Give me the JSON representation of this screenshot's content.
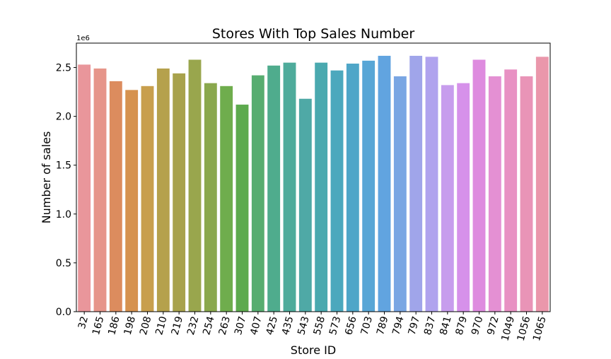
{
  "chart_data": {
    "type": "bar",
    "title": "Stores With Top Sales Number",
    "xlabel": "Store ID",
    "ylabel": "Number of sales",
    "y_scale_label": "1e6",
    "ylim": [
      0,
      2.75
    ],
    "yticks": [
      0.0,
      0.5,
      1.0,
      1.5,
      2.0,
      2.5
    ],
    "ytick_labels": [
      "0.0",
      "0.5",
      "1.0",
      "1.5",
      "2.0",
      "2.5"
    ],
    "grid": false,
    "legend": "none",
    "categories": [
      "32",
      "165",
      "186",
      "198",
      "208",
      "210",
      "219",
      "232",
      "254",
      "263",
      "307",
      "407",
      "425",
      "435",
      "543",
      "558",
      "573",
      "656",
      "703",
      "789",
      "794",
      "797",
      "837",
      "841",
      "879",
      "970",
      "972",
      "1049",
      "1056",
      "1065"
    ],
    "values": [
      2.53,
      2.49,
      2.36,
      2.27,
      2.31,
      2.49,
      2.44,
      2.58,
      2.34,
      2.31,
      2.12,
      2.42,
      2.52,
      2.55,
      2.18,
      2.55,
      2.47,
      2.54,
      2.57,
      2.62,
      2.41,
      2.62,
      2.61,
      2.32,
      2.34,
      2.58,
      2.41,
      2.48,
      2.41,
      2.61
    ],
    "colors": [
      "#e9969b",
      "#e6958a",
      "#dc8c5e",
      "#d6924f",
      "#c89f4d",
      "#b5a14c",
      "#a8a24c",
      "#99a64d",
      "#8aa84d",
      "#6fad4d",
      "#5daa4e",
      "#57ad70",
      "#4fac8d",
      "#4eab9b",
      "#4fa9a6",
      "#4aa9af",
      "#4ca8bd",
      "#4fa6c8",
      "#58a6d6",
      "#61a4e0",
      "#79a6e3",
      "#a0a5ea",
      "#b0a3ee",
      "#c79ded",
      "#d691ea",
      "#de8bdf",
      "#e490d3",
      "#e891c3",
      "#e994b7",
      "#ea97ab"
    ]
  }
}
